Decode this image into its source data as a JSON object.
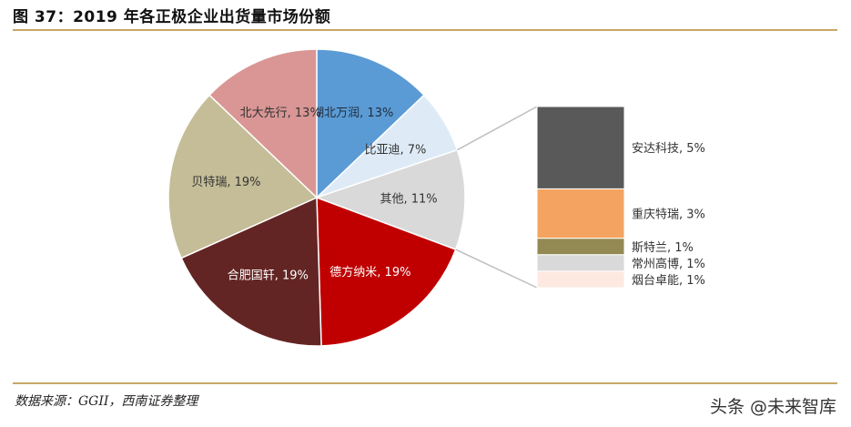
{
  "figure": {
    "title": "图 37：2019 年各正极企业出货量市场份额",
    "source": "数据来源：GGII，西南证券整理",
    "watermark": "头条 @未来智库"
  },
  "chart_data": {
    "type": "pie",
    "title": "",
    "slices": [
      {
        "name": "湖北万润",
        "value": 13,
        "label": "湖北万润, 13%",
        "color": "#5b9bd5",
        "text_color": "#1f2d3d"
      },
      {
        "name": "比亚迪",
        "value": 7,
        "label": "比亚迪, 7%",
        "color": "#deebf7",
        "text_color": "#333333"
      },
      {
        "name": "其他",
        "value": 11,
        "label": "其他, 11%",
        "color": "#d9d9d9",
        "text_color": "#333333"
      },
      {
        "name": "德方纳米",
        "value": 19,
        "label": "德方纳米, 19%",
        "color": "#c00000",
        "text_color": "#ffffff"
      },
      {
        "name": "合肥国轩",
        "value": 19,
        "label": "合肥国轩, 19%",
        "color": "#632523",
        "text_color": "#ffffff"
      },
      {
        "name": "贝特瑞",
        "value": 19,
        "label": "贝特瑞, 19%",
        "color": "#c4bd97",
        "text_color": "#333333"
      },
      {
        "name": "北大先行",
        "value": 13,
        "label": "北大先行, 13%",
        "color": "#d99694",
        "text_color": "#333333"
      }
    ],
    "breakdown_of": "其他",
    "breakdown": [
      {
        "name": "安达科技",
        "value": 5,
        "label": "安达科技, 5%",
        "color": "#595959"
      },
      {
        "name": "重庆特瑞",
        "value": 3,
        "label": "重庆特瑞, 3%",
        "color": "#f4a460"
      },
      {
        "name": "斯特兰",
        "value": 1,
        "label": "斯特兰, 1%",
        "color": "#938953"
      },
      {
        "name": "常州高博",
        "value": 1,
        "label": "常州高博, 1%",
        "color": "#d9d9d9"
      },
      {
        "name": "烟台卓能",
        "value": 1,
        "label": "烟台卓能, 1%",
        "color": "#fde9e0"
      }
    ]
  }
}
